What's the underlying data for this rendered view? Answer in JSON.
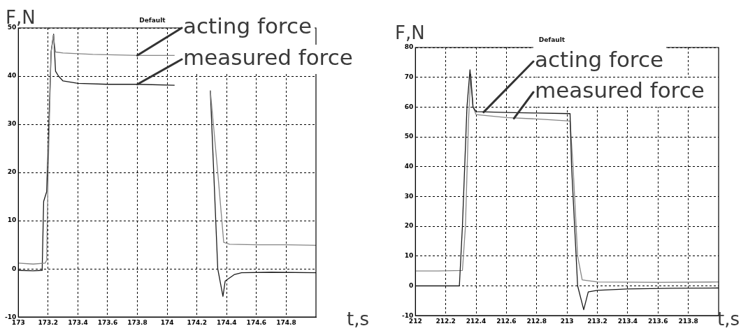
{
  "chart_data": [
    {
      "type": "line",
      "title": "Default",
      "xlabel": "t,s",
      "ylabel": "F,N",
      "xlim": [
        173,
        175
      ],
      "xticks": [
        173,
        173.2,
        173.4,
        173.6,
        173.8,
        174,
        174.2,
        174.4,
        174.6,
        174.8
      ],
      "ylim": [
        -10,
        50
      ],
      "yticks": [
        -10,
        0,
        10,
        20,
        30,
        40,
        50
      ],
      "grid": true,
      "line_style": "solid",
      "series": [
        {
          "color": "#858585",
          "x": [
            173,
            173.1,
            173.18,
            173.19,
            173.2,
            173.22,
            173.235,
            173.25,
            173.3,
            173.5,
            173.8,
            174.05,
            174.17,
            174.29,
            174.34,
            174.38,
            174.42,
            174.6,
            174.8,
            175
          ],
          "values": [
            1.2,
            1.0,
            1.2,
            1.8,
            20,
            45,
            48.5,
            45,
            44.8,
            44.5,
            44.3,
            44.3,
            null,
            37,
            20,
            5.5,
            5.1,
            5,
            5,
            4.9
          ]
        },
        {
          "color": "#1a1a1a",
          "x": [
            173,
            173.1,
            173.16,
            173.17,
            173.19,
            173.2,
            173.22,
            173.237,
            173.25,
            173.27,
            173.3,
            173.4,
            173.6,
            173.8,
            174.05,
            174.17,
            174.29,
            174.34,
            174.375,
            174.39,
            174.45,
            174.5,
            174.7,
            175
          ],
          "values": [
            -0.3,
            -0.4,
            -0.3,
            14,
            16,
            25,
            45,
            48.7,
            41,
            40,
            39,
            38.5,
            38.3,
            38.3,
            38.1,
            null,
            37,
            0,
            -5.7,
            -2.5,
            -1.2,
            -0.8,
            -0.7,
            -0.8
          ]
        }
      ],
      "annotations": [
        {
          "text": "acting force",
          "x": 173.8,
          "y": 44.3
        },
        {
          "text": "measured force",
          "x": 173.8,
          "y": 38.3
        }
      ]
    },
    {
      "type": "line",
      "title": "Default",
      "xlabel": "t,s",
      "ylabel": "F,N",
      "xlim": [
        212,
        214
      ],
      "xticks": [
        212,
        212.2,
        212.4,
        212.6,
        212.8,
        213,
        213.2,
        213.4,
        213.6,
        213.8
      ],
      "ylim": [
        -10,
        80
      ],
      "yticks": [
        -10,
        0,
        10,
        20,
        30,
        40,
        50,
        60,
        70,
        80
      ],
      "grid": true,
      "line_style": "solid",
      "series": [
        {
          "color": "#1a1a1a",
          "x": [
            212,
            212.15,
            212.29,
            212.31,
            212.34,
            212.36,
            212.38,
            212.4,
            212.6,
            212.8,
            213.02,
            213.03,
            213.07,
            213.11,
            213.14,
            213.2,
            213.4,
            213.7,
            214
          ],
          "values": [
            0,
            0,
            0,
            20,
            60,
            72.5,
            60,
            58.5,
            58.2,
            58,
            57.8,
            40,
            0,
            -8,
            -2,
            -1.5,
            -1,
            -0.8,
            -0.7
          ]
        },
        {
          "color": "#858585",
          "x": [
            212,
            212.15,
            212.31,
            212.33,
            212.35,
            212.365,
            212.38,
            212.4,
            212.6,
            212.8,
            213.02,
            213.04,
            213.07,
            213.1,
            213.2,
            213.6,
            214
          ],
          "values": [
            5,
            5,
            5.2,
            20,
            55,
            71,
            60,
            57.5,
            56.5,
            56,
            55.3,
            40,
            10,
            2,
            1.3,
            1.2,
            1.3
          ]
        }
      ],
      "annotations": [
        {
          "text": "acting force",
          "x": 212.45,
          "y": 58.3
        },
        {
          "text": "measured force",
          "x": 212.65,
          "y": 56.2
        }
      ]
    }
  ]
}
